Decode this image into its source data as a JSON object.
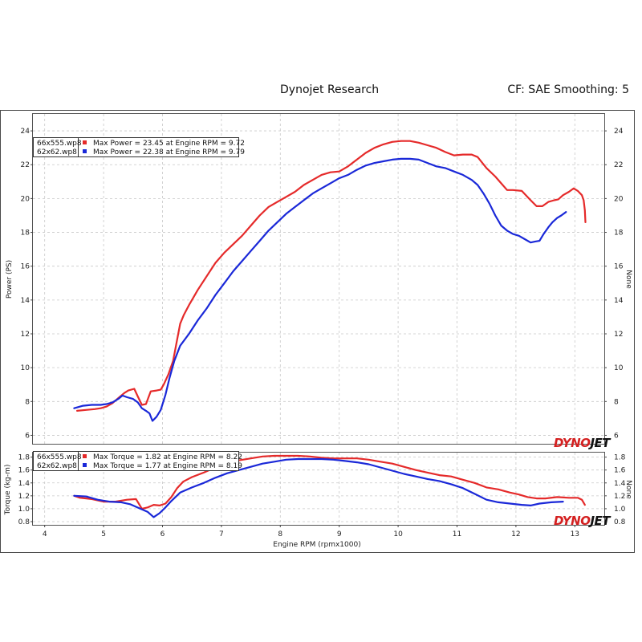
{
  "header": {
    "title": "Dynojet Research",
    "settings": "CF: SAE Smoothing: 5"
  },
  "brand": {
    "logo_text": "DYNOJET"
  },
  "colors": {
    "red": "#e52a2a",
    "blue": "#1a28d8",
    "grid": "#c8c8c8",
    "frame": "#4a4a4a"
  },
  "chart_data": [
    {
      "type": "line",
      "ylabel": "Power (PS)",
      "y2label": "None",
      "xlim": [
        3.8,
        13.5
      ],
      "ylim": [
        5.5,
        25
      ],
      "yticks": [
        6,
        8,
        10,
        12,
        14,
        16,
        18,
        20,
        22,
        24
      ],
      "grid": true,
      "legend_position": "top-left",
      "legend": [
        {
          "file": "66x555.wp8",
          "text": "Max Power = 23.45 at Engine RPM = 9.72"
        },
        {
          "file": "62x62.wp8",
          "text": "Max Power = 22.38 at Engine RPM = 9.79"
        }
      ],
      "series": [
        {
          "name": "66x555.wp8",
          "points": [
            [
              4.55,
              7.45
            ],
            [
              4.7,
              7.5
            ],
            [
              4.85,
              7.55
            ],
            [
              4.95,
              7.6
            ],
            [
              5.05,
              7.7
            ],
            [
              5.15,
              7.9
            ],
            [
              5.25,
              8.2
            ],
            [
              5.35,
              8.5
            ],
            [
              5.42,
              8.65
            ],
            [
              5.52,
              8.75
            ],
            [
              5.58,
              8.3
            ],
            [
              5.65,
              7.8
            ],
            [
              5.72,
              7.85
            ],
            [
              5.8,
              8.6
            ],
            [
              5.9,
              8.65
            ],
            [
              5.97,
              8.7
            ],
            [
              6.02,
              9.0
            ],
            [
              6.1,
              9.6
            ],
            [
              6.18,
              10.4
            ],
            [
              6.24,
              11.5
            ],
            [
              6.3,
              12.6
            ],
            [
              6.36,
              13.1
            ],
            [
              6.45,
              13.7
            ],
            [
              6.6,
              14.6
            ],
            [
              6.75,
              15.4
            ],
            [
              6.9,
              16.2
            ],
            [
              7.05,
              16.8
            ],
            [
              7.2,
              17.3
            ],
            [
              7.35,
              17.8
            ],
            [
              7.5,
              18.4
            ],
            [
              7.65,
              19.0
            ],
            [
              7.8,
              19.5
            ],
            [
              7.95,
              19.8
            ],
            [
              8.1,
              20.1
            ],
            [
              8.25,
              20.4
            ],
            [
              8.4,
              20.8
            ],
            [
              8.55,
              21.1
            ],
            [
              8.7,
              21.4
            ],
            [
              8.85,
              21.55
            ],
            [
              9.0,
              21.6
            ],
            [
              9.15,
              21.9
            ],
            [
              9.3,
              22.3
            ],
            [
              9.45,
              22.7
            ],
            [
              9.6,
              23.0
            ],
            [
              9.75,
              23.2
            ],
            [
              9.9,
              23.35
            ],
            [
              10.05,
              23.4
            ],
            [
              10.2,
              23.4
            ],
            [
              10.35,
              23.3
            ],
            [
              10.5,
              23.15
            ],
            [
              10.65,
              23.0
            ],
            [
              10.8,
              22.75
            ],
            [
              10.95,
              22.55
            ],
            [
              11.1,
              22.6
            ],
            [
              11.25,
              22.6
            ],
            [
              11.35,
              22.45
            ],
            [
              11.5,
              21.8
            ],
            [
              11.65,
              21.3
            ],
            [
              11.75,
              20.9
            ],
            [
              11.85,
              20.5
            ],
            [
              11.95,
              20.5
            ],
            [
              12.1,
              20.45
            ],
            [
              12.25,
              19.9
            ],
            [
              12.35,
              19.55
            ],
            [
              12.45,
              19.55
            ],
            [
              12.55,
              19.8
            ],
            [
              12.65,
              19.9
            ],
            [
              12.72,
              19.95
            ],
            [
              12.8,
              20.2
            ],
            [
              12.9,
              20.4
            ],
            [
              12.98,
              20.6
            ],
            [
              13.05,
              20.45
            ],
            [
              13.12,
              20.2
            ],
            [
              13.15,
              19.9
            ],
            [
              13.17,
              19.3
            ],
            [
              13.18,
              18.6
            ]
          ]
        },
        {
          "name": "62x62.wp8",
          "points": [
            [
              4.5,
              7.6
            ],
            [
              4.65,
              7.75
            ],
            [
              4.8,
              7.8
            ],
            [
              4.95,
              7.8
            ],
            [
              5.05,
              7.85
            ],
            [
              5.15,
              7.95
            ],
            [
              5.25,
              8.15
            ],
            [
              5.32,
              8.35
            ],
            [
              5.4,
              8.25
            ],
            [
              5.5,
              8.15
            ],
            [
              5.58,
              7.95
            ],
            [
              5.65,
              7.6
            ],
            [
              5.72,
              7.45
            ],
            [
              5.78,
              7.3
            ],
            [
              5.83,
              6.85
            ],
            [
              5.9,
              7.1
            ],
            [
              5.97,
              7.5
            ],
            [
              6.05,
              8.4
            ],
            [
              6.12,
              9.4
            ],
            [
              6.2,
              10.4
            ],
            [
              6.3,
              11.3
            ],
            [
              6.45,
              12.0
            ],
            [
              6.6,
              12.8
            ],
            [
              6.75,
              13.5
            ],
            [
              6.9,
              14.3
            ],
            [
              7.05,
              15.0
            ],
            [
              7.2,
              15.7
            ],
            [
              7.35,
              16.3
            ],
            [
              7.5,
              16.9
            ],
            [
              7.65,
              17.5
            ],
            [
              7.8,
              18.1
            ],
            [
              7.95,
              18.6
            ],
            [
              8.1,
              19.1
            ],
            [
              8.25,
              19.5
            ],
            [
              8.4,
              19.9
            ],
            [
              8.55,
              20.3
            ],
            [
              8.7,
              20.6
            ],
            [
              8.85,
              20.9
            ],
            [
              9.0,
              21.2
            ],
            [
              9.15,
              21.4
            ],
            [
              9.3,
              21.7
            ],
            [
              9.45,
              21.95
            ],
            [
              9.6,
              22.1
            ],
            [
              9.75,
              22.2
            ],
            [
              9.9,
              22.3
            ],
            [
              10.05,
              22.35
            ],
            [
              10.2,
              22.35
            ],
            [
              10.35,
              22.3
            ],
            [
              10.5,
              22.1
            ],
            [
              10.65,
              21.9
            ],
            [
              10.8,
              21.8
            ],
            [
              10.95,
              21.6
            ],
            [
              11.1,
              21.4
            ],
            [
              11.25,
              21.1
            ],
            [
              11.35,
              20.8
            ],
            [
              11.45,
              20.3
            ],
            [
              11.55,
              19.7
            ],
            [
              11.65,
              19.0
            ],
            [
              11.75,
              18.4
            ],
            [
              11.85,
              18.1
            ],
            [
              11.95,
              17.9
            ],
            [
              12.05,
              17.8
            ],
            [
              12.15,
              17.6
            ],
            [
              12.25,
              17.4
            ],
            [
              12.32,
              17.45
            ],
            [
              12.4,
              17.5
            ],
            [
              12.47,
              17.9
            ],
            [
              12.55,
              18.3
            ],
            [
              12.62,
              18.6
            ],
            [
              12.7,
              18.85
            ],
            [
              12.77,
              19.0
            ],
            [
              12.85,
              19.2
            ]
          ]
        }
      ]
    },
    {
      "type": "line",
      "xlabel": "Engine RPM (rpmx1000)",
      "ylabel": "Torque (kg-m)",
      "y2label": "None",
      "xlim": [
        3.8,
        13.5
      ],
      "ylim": [
        0.75,
        1.87
      ],
      "xticks": [
        4,
        5,
        6,
        7,
        8,
        9,
        10,
        11,
        12,
        13
      ],
      "yticks": [
        0.8,
        1.0,
        1.2,
        1.4,
        1.6,
        1.8
      ],
      "ytick_labels": [
        "0.8",
        "1.0",
        "1.2",
        "1.4",
        "1.6",
        "1.8"
      ],
      "grid": true,
      "legend_position": "top-left",
      "legend": [
        {
          "file": "66x555.wp8",
          "text": "Max Torque = 1.82 at Engine RPM = 8.22"
        },
        {
          "file": "62x62.wp8",
          "text": "Max Torque = 1.77 at Engine RPM = 8.19"
        }
      ],
      "series": [
        {
          "name": "66x555.wp8",
          "points": [
            [
              4.5,
              1.2
            ],
            [
              4.6,
              1.17
            ],
            [
              4.8,
              1.15
            ],
            [
              5.0,
              1.11
            ],
            [
              5.2,
              1.11
            ],
            [
              5.4,
              1.14
            ],
            [
              5.55,
              1.15
            ],
            [
              5.65,
              1.0
            ],
            [
              5.75,
              1.02
            ],
            [
              5.85,
              1.06
            ],
            [
              5.95,
              1.05
            ],
            [
              6.05,
              1.08
            ],
            [
              6.15,
              1.18
            ],
            [
              6.25,
              1.32
            ],
            [
              6.35,
              1.42
            ],
            [
              6.5,
              1.49
            ],
            [
              6.7,
              1.56
            ],
            [
              6.9,
              1.64
            ],
            [
              7.1,
              1.7
            ],
            [
              7.3,
              1.75
            ],
            [
              7.5,
              1.78
            ],
            [
              7.7,
              1.81
            ],
            [
              7.9,
              1.82
            ],
            [
              8.1,
              1.82
            ],
            [
              8.3,
              1.82
            ],
            [
              8.5,
              1.81
            ],
            [
              8.7,
              1.79
            ],
            [
              8.9,
              1.78
            ],
            [
              9.1,
              1.78
            ],
            [
              9.3,
              1.78
            ],
            [
              9.5,
              1.76
            ],
            [
              9.7,
              1.73
            ],
            [
              9.9,
              1.7
            ],
            [
              10.1,
              1.65
            ],
            [
              10.3,
              1.6
            ],
            [
              10.5,
              1.56
            ],
            [
              10.7,
              1.52
            ],
            [
              10.9,
              1.5
            ],
            [
              11.1,
              1.45
            ],
            [
              11.3,
              1.4
            ],
            [
              11.5,
              1.33
            ],
            [
              11.7,
              1.3
            ],
            [
              11.9,
              1.25
            ],
            [
              12.05,
              1.22
            ],
            [
              12.2,
              1.18
            ],
            [
              12.35,
              1.16
            ],
            [
              12.5,
              1.16
            ],
            [
              12.7,
              1.18
            ],
            [
              12.9,
              1.17
            ],
            [
              13.05,
              1.17
            ],
            [
              13.12,
              1.14
            ],
            [
              13.17,
              1.06
            ]
          ]
        },
        {
          "name": "62x62.wp8",
          "points": [
            [
              4.5,
              1.2
            ],
            [
              4.7,
              1.19
            ],
            [
              4.9,
              1.14
            ],
            [
              5.1,
              1.11
            ],
            [
              5.3,
              1.1
            ],
            [
              5.45,
              1.07
            ],
            [
              5.6,
              1.01
            ],
            [
              5.75,
              0.95
            ],
            [
              5.85,
              0.87
            ],
            [
              5.95,
              0.93
            ],
            [
              6.05,
              1.02
            ],
            [
              6.15,
              1.12
            ],
            [
              6.3,
              1.25
            ],
            [
              6.5,
              1.33
            ],
            [
              6.7,
              1.4
            ],
            [
              6.9,
              1.48
            ],
            [
              7.1,
              1.55
            ],
            [
              7.3,
              1.6
            ],
            [
              7.5,
              1.65
            ],
            [
              7.7,
              1.7
            ],
            [
              7.9,
              1.73
            ],
            [
              8.1,
              1.76
            ],
            [
              8.3,
              1.77
            ],
            [
              8.5,
              1.77
            ],
            [
              8.7,
              1.77
            ],
            [
              8.9,
              1.76
            ],
            [
              9.1,
              1.74
            ],
            [
              9.3,
              1.72
            ],
            [
              9.5,
              1.69
            ],
            [
              9.7,
              1.64
            ],
            [
              9.9,
              1.59
            ],
            [
              10.1,
              1.54
            ],
            [
              10.3,
              1.5
            ],
            [
              10.5,
              1.46
            ],
            [
              10.7,
              1.43
            ],
            [
              10.9,
              1.38
            ],
            [
              11.1,
              1.32
            ],
            [
              11.3,
              1.23
            ],
            [
              11.5,
              1.14
            ],
            [
              11.7,
              1.1
            ],
            [
              11.9,
              1.08
            ],
            [
              12.1,
              1.06
            ],
            [
              12.25,
              1.05
            ],
            [
              12.4,
              1.08
            ],
            [
              12.6,
              1.1
            ],
            [
              12.8,
              1.11
            ]
          ]
        }
      ]
    }
  ]
}
